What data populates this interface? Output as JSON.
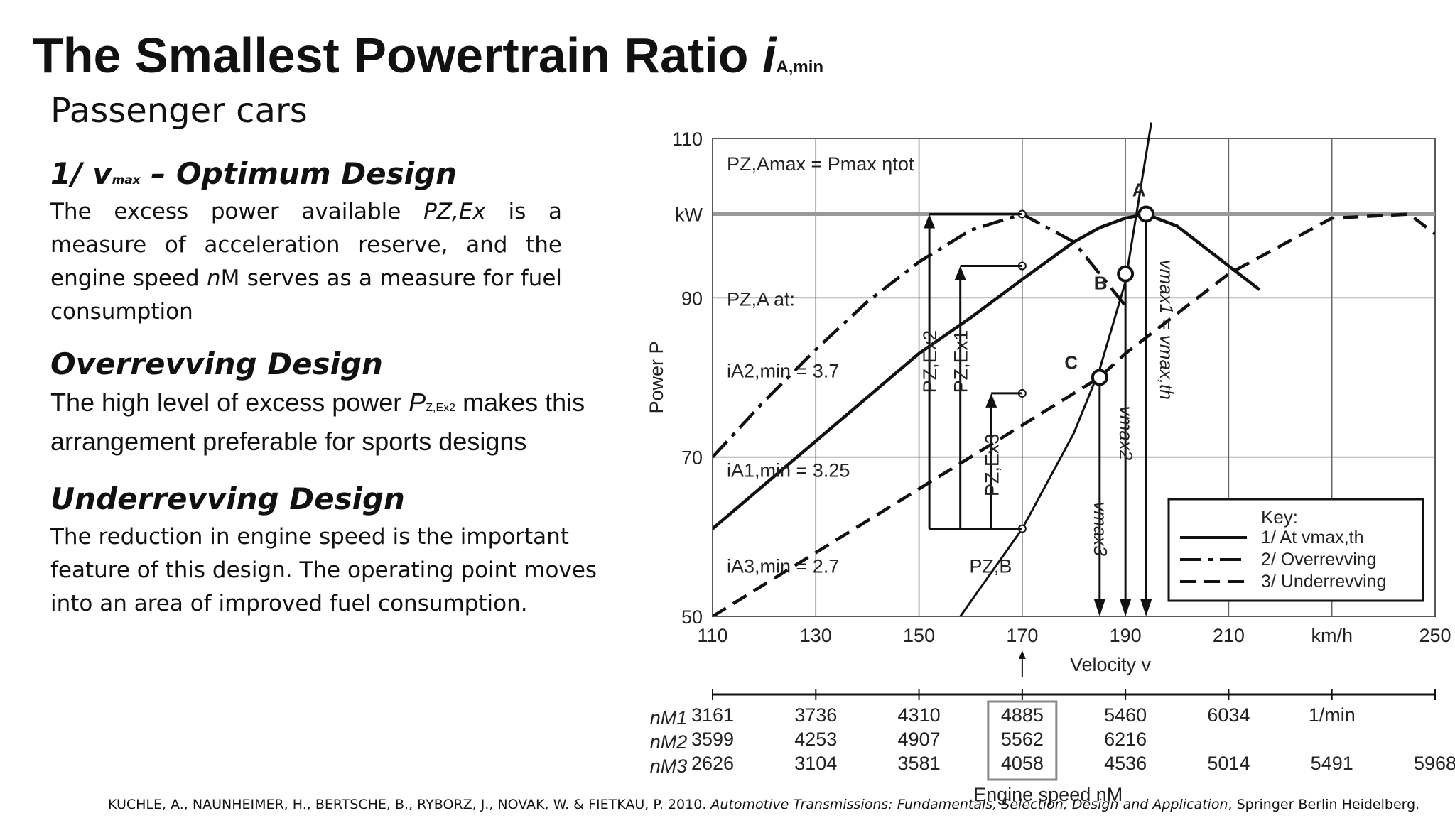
{
  "slide": {
    "title": "The Smallest Powertrain Ratio ",
    "title_symbol": "i",
    "title_subscript": "A,min",
    "subtitle": "Passenger  cars",
    "sections": [
      {
        "heading_pre": "1/ v",
        "heading_sub": "max",
        "heading_post": " – Optimum Design",
        "body_a": "The excess power available ",
        "body_b": "PZ,Ex",
        "body_c": " is a measure of acceleration reserve, and the engine speed ",
        "body_d": "n",
        "body_e": "M serves as a measure for fuel consumption"
      },
      {
        "heading": "Overrevving Design",
        "body_a": "The high level of excess power ",
        "body_b": "P",
        "body_sub": "Z,Ex2",
        "body_c": " makes this arrangement preferable for sports designs"
      },
      {
        "heading": "Underrevving Design",
        "body": "The reduction in engine speed is the important feature of this design. The operating point moves into an area of improved fuel consumption."
      }
    ],
    "citation_a": "KUCHLE, A., NAUNHEIMER, H., BERTSCHE, B., RYBORZ, J., NOVAK, W. & FIETKAU, P. 2010. ",
    "citation_b": "Automotive Transmissions: Fundamentals, Selection, Design and Application",
    "citation_c": ", Springer Berlin Heidelberg."
  },
  "chart_data": {
    "type": "line",
    "xlabel": "Velocity v",
    "x_unit": "km/h",
    "ylabel": "Power P",
    "y_unit": "kW",
    "xlim": [
      110,
      250
    ],
    "ylim": [
      50,
      110
    ],
    "x_ticks": [
      "110",
      "130",
      "150",
      "170",
      "190",
      "210",
      "km/h",
      "250"
    ],
    "y_ticks": [
      "110",
      "kW",
      "90",
      "70",
      "50"
    ],
    "grid": true,
    "pmax_label": "PZ,Amax = Pmax ηtot",
    "pza_label": "PZ,A at:",
    "resistance_label": "PZ,B",
    "series": [
      {
        "name": "1/ At vmax,th",
        "ratio_label": "iA1,min = 3.25",
        "style": "solid",
        "x": [
          110,
          120,
          130,
          140,
          150,
          160,
          170,
          180,
          185,
          190,
          194,
          200,
          210,
          216
        ],
        "y": [
          61,
          66.5,
          72,
          77.5,
          83,
          87.5,
          92.3,
          97,
          98.8,
          100,
          100.5,
          99,
          94,
          91
        ]
      },
      {
        "name": "2/ Overrevving",
        "ratio_label": "iA2,min = 3.7",
        "style": "dashdot",
        "x": [
          110,
          120,
          130,
          140,
          150,
          160,
          170,
          180,
          190
        ],
        "y": [
          70,
          77,
          83.5,
          89.5,
          94.5,
          98.5,
          100.5,
          97,
          89
        ]
      },
      {
        "name": "3/ Underrevving",
        "ratio_label": "iA3,min = 2.7",
        "style": "dashed",
        "x": [
          110,
          130,
          150,
          170,
          185,
          190,
          210,
          230,
          245,
          250
        ],
        "y": [
          50,
          58,
          66,
          74,
          80,
          83,
          93,
          100,
          100.5,
          98
        ]
      },
      {
        "name": "PZ,B",
        "style": "thin",
        "x": [
          158,
          170,
          175,
          180,
          185,
          190,
          195
        ],
        "y": [
          50,
          61,
          67,
          73,
          81,
          92,
          112
        ]
      }
    ],
    "points": [
      {
        "label": "A",
        "x": 194,
        "y": 100.5
      },
      {
        "label": "B",
        "x": 190,
        "y": 93
      },
      {
        "label": "C",
        "x": 185,
        "y": 80
      }
    ],
    "velocity_markers": [
      {
        "label": "vmax1 = vmax,th",
        "x": 194
      },
      {
        "label": "vmax2",
        "x": 190
      },
      {
        "label": "vmax3",
        "x": 185
      }
    ],
    "excess_power_labels": [
      "PZ,Ex2",
      "PZ,Ex1",
      "PZ,Ex3"
    ],
    "legend": {
      "title": "Key:",
      "position": "bottom-right",
      "entries": [
        "1/ At vmax,th",
        "2/ Overrevving",
        "3/ Underrevving"
      ]
    },
    "engine_speed": {
      "label": "Engine speed nM",
      "unit": "1/min",
      "rows": [
        {
          "name": "nM1",
          "values": [
            "3161",
            "3736",
            "4310",
            "4885",
            "5460",
            "6034"
          ]
        },
        {
          "name": "nM2",
          "values": [
            "3599",
            "4253",
            "4907",
            "5562",
            "6216"
          ]
        },
        {
          "name": "nM3",
          "values": [
            "2626",
            "3104",
            "3581",
            "4058",
            "4536",
            "5014",
            "5491",
            "5968"
          ]
        }
      ]
    }
  }
}
